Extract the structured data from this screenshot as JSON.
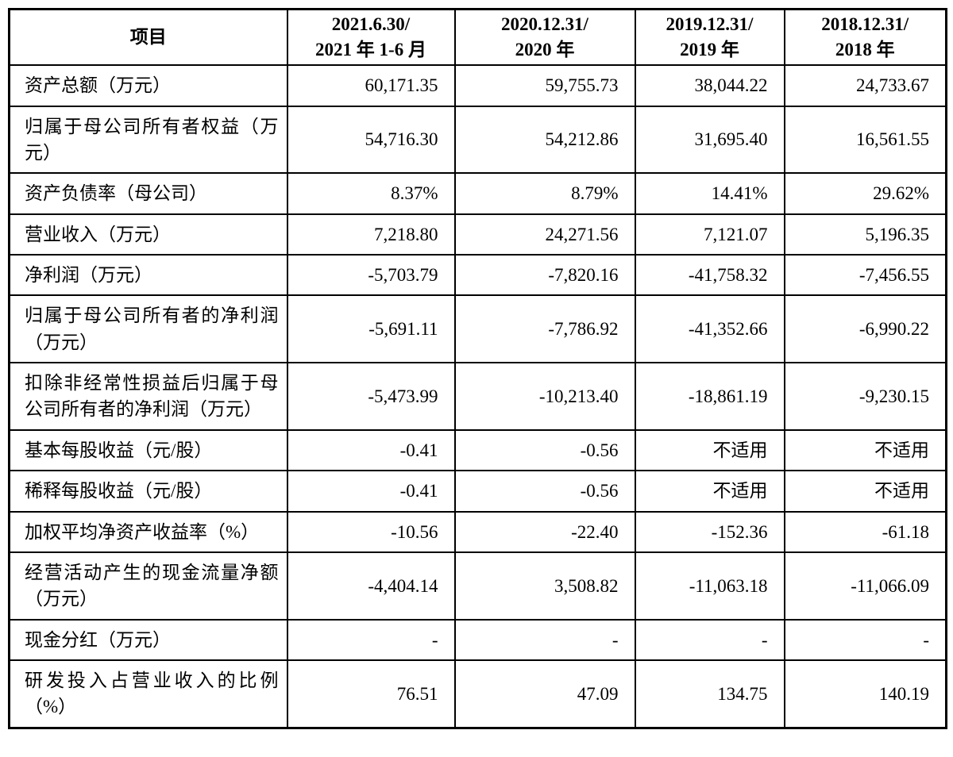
{
  "table": {
    "header": {
      "item": "项目",
      "periods": [
        {
          "l1": "2021.6.30/",
          "l2": "2021 年 1-6 月"
        },
        {
          "l1": "2020.12.31/",
          "l2": "2020 年"
        },
        {
          "l1": "2019.12.31/",
          "l2": "2019 年"
        },
        {
          "l1": "2018.12.31/",
          "l2": "2018 年"
        }
      ]
    },
    "rows": [
      {
        "label": "资产总额（万元）",
        "values": [
          "60,171.35",
          "59,755.73",
          "38,044.22",
          "24,733.67"
        ]
      },
      {
        "label": "归属于母公司所有者权益（万元）",
        "values": [
          "54,716.30",
          "54,212.86",
          "31,695.40",
          "16,561.55"
        ]
      },
      {
        "label": "资产负债率（母公司）",
        "values": [
          "8.37%",
          "8.79%",
          "14.41%",
          "29.62%"
        ]
      },
      {
        "label": "营业收入（万元）",
        "values": [
          "7,218.80",
          "24,271.56",
          "7,121.07",
          "5,196.35"
        ]
      },
      {
        "label": "净利润（万元）",
        "values": [
          "-5,703.79",
          "-7,820.16",
          "-41,758.32",
          "-7,456.55"
        ]
      },
      {
        "label": "归属于母公司所有者的净利润（万元）",
        "values": [
          "-5,691.11",
          "-7,786.92",
          "-41,352.66",
          "-6,990.22"
        ]
      },
      {
        "label": "扣除非经常性损益后归属于母公司所有者的净利润（万元）",
        "values": [
          "-5,473.99",
          "-10,213.40",
          "-18,861.19",
          "-9,230.15"
        ]
      },
      {
        "label": "基本每股收益（元/股）",
        "values": [
          "-0.41",
          "-0.56",
          "不适用",
          "不适用"
        ]
      },
      {
        "label": "稀释每股收益（元/股）",
        "values": [
          "-0.41",
          "-0.56",
          "不适用",
          "不适用"
        ]
      },
      {
        "label": "加权平均净资产收益率（%）",
        "values": [
          "-10.56",
          "-22.40",
          "-152.36",
          "-61.18"
        ]
      },
      {
        "label": "经营活动产生的现金流量净额（万元）",
        "values": [
          "-4,404.14",
          "3,508.82",
          "-11,063.18",
          "-11,066.09"
        ]
      },
      {
        "label": "现金分红（万元）",
        "values": [
          "-",
          "-",
          "-",
          "-"
        ]
      },
      {
        "label": "研发投入占营业收入的比例（%）",
        "values": [
          "76.51",
          "47.09",
          "134.75",
          "140.19"
        ]
      }
    ]
  }
}
